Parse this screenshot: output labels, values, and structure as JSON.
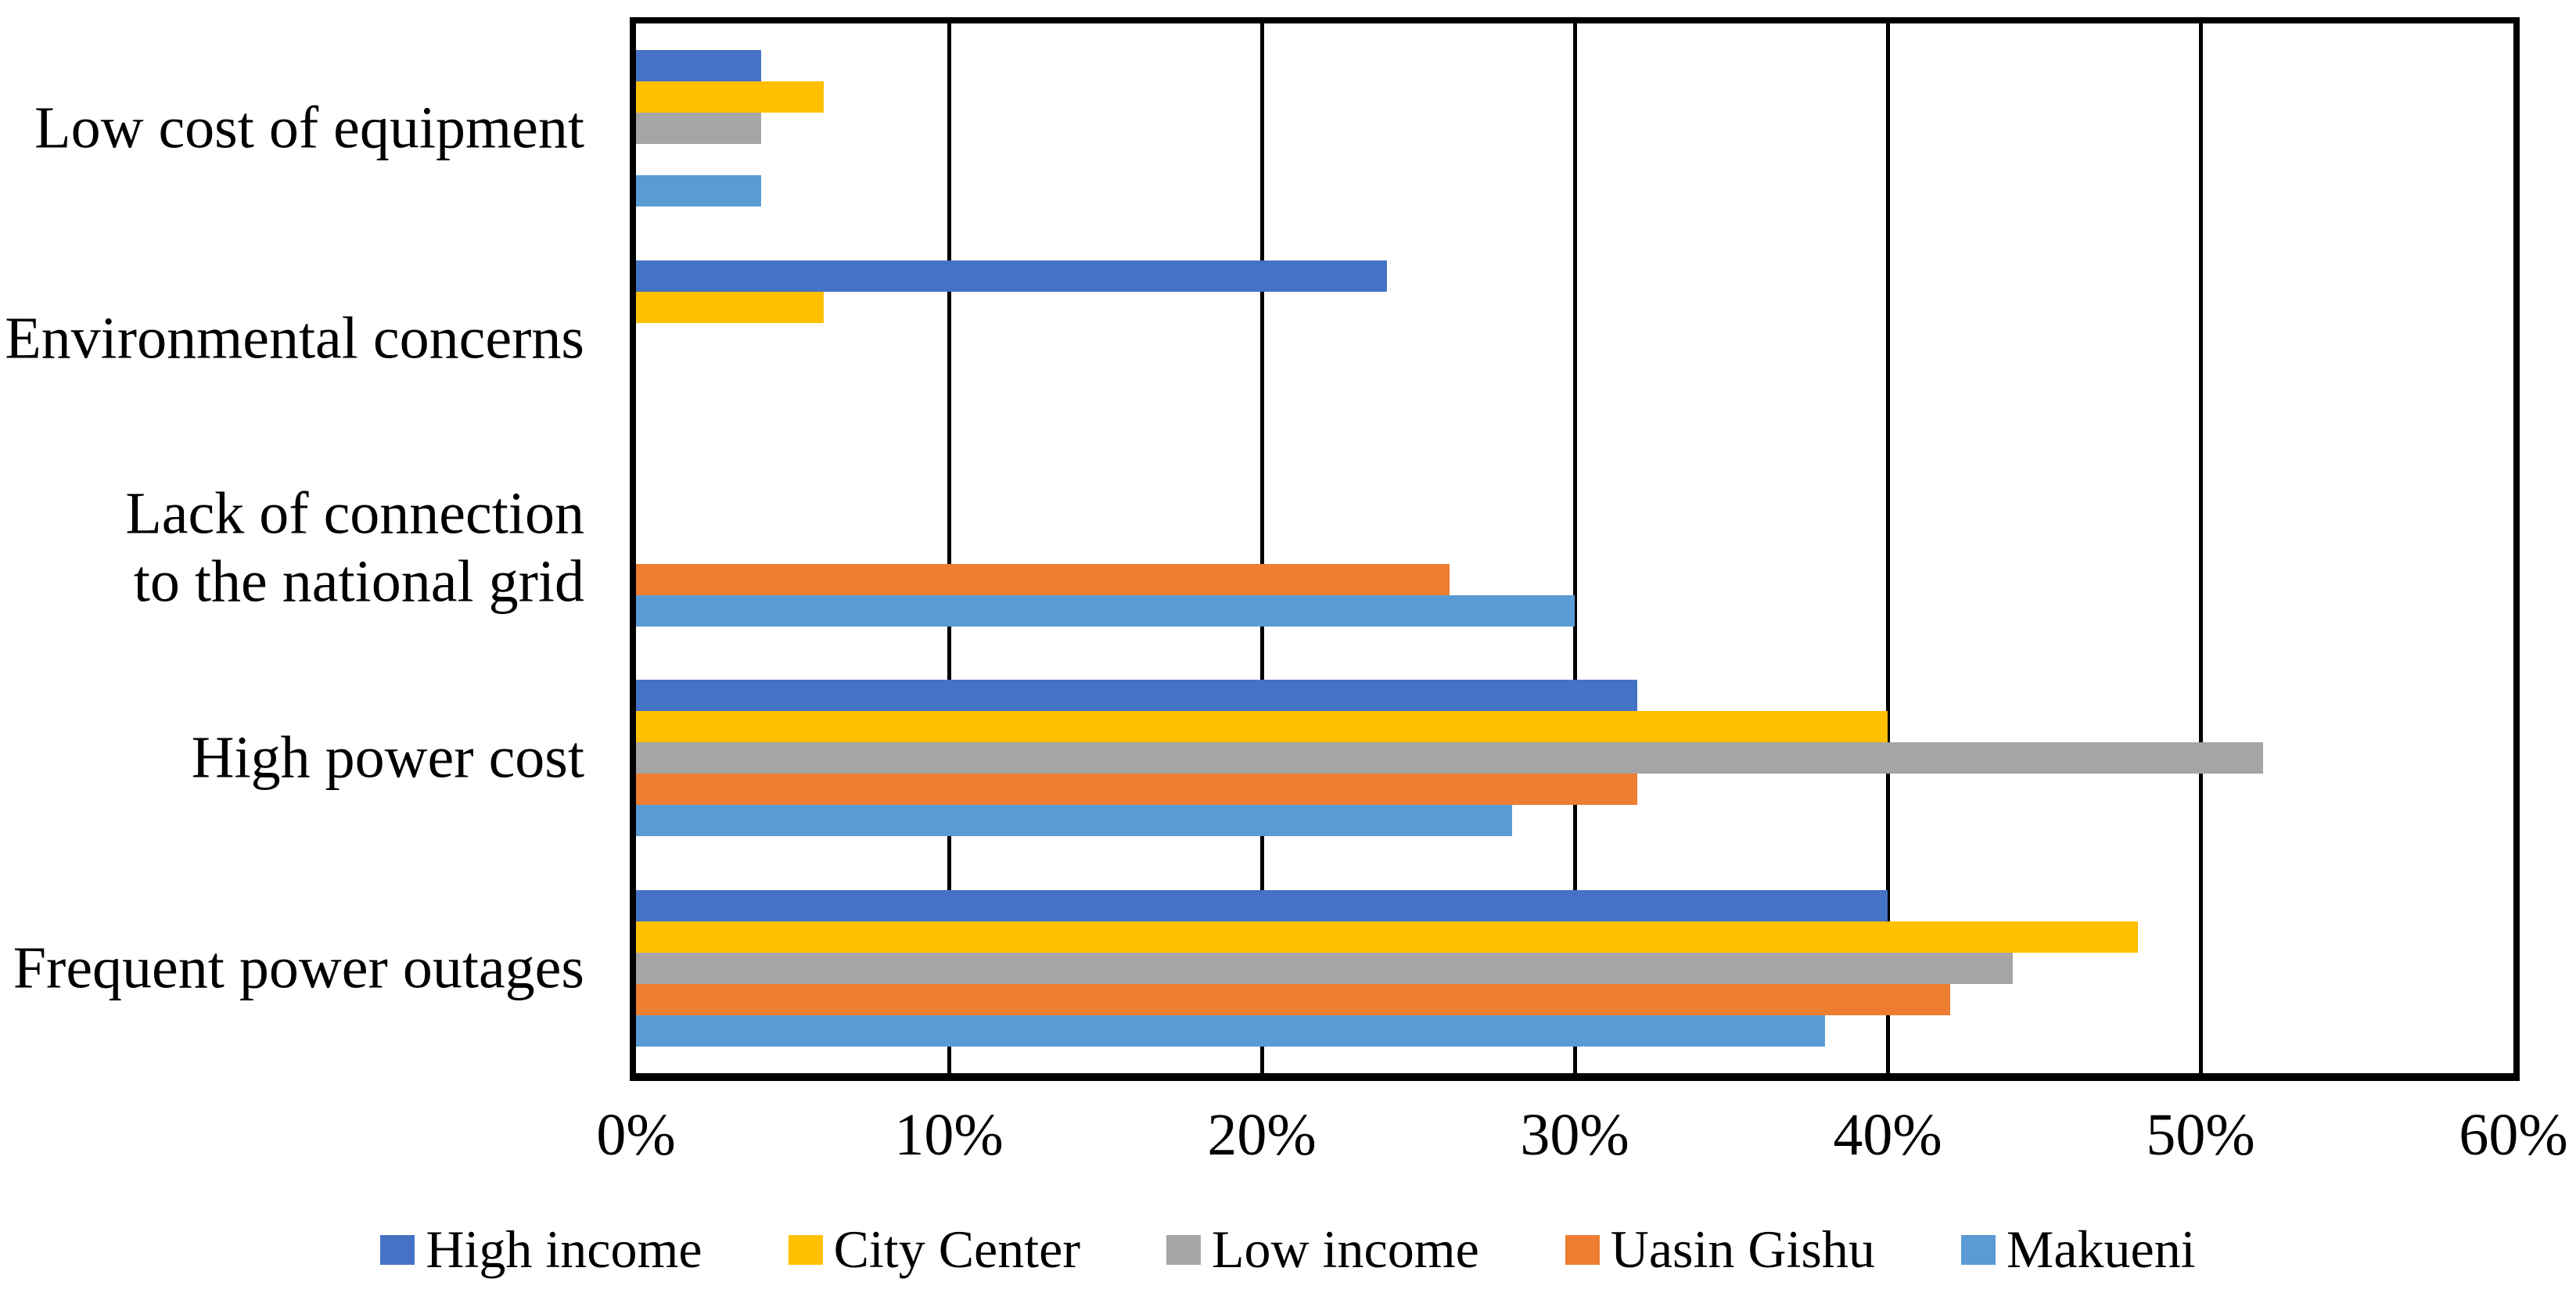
{
  "chart_data": {
    "type": "bar",
    "orientation": "horizontal",
    "title": "",
    "xlabel": "",
    "ylabel": "",
    "categories": [
      "Low cost of equipment",
      "Environmental concerns",
      "Lack of connection\nto the national grid",
      "High power cost",
      "Frequent power outages"
    ],
    "series": [
      {
        "name": "High income",
        "color": "#4472C4",
        "values": [
          4,
          24,
          0,
          32,
          40
        ]
      },
      {
        "name": "City Center",
        "color": "#FFC000",
        "values": [
          6,
          6,
          0,
          40,
          48
        ]
      },
      {
        "name": "Low income",
        "color": "#A5A5A5",
        "values": [
          4,
          0,
          0,
          52,
          44
        ]
      },
      {
        "name": "Uasin Gishu",
        "color": "#ED7D31",
        "values": [
          0,
          0,
          26,
          32,
          42
        ]
      },
      {
        "name": "Makueni",
        "color": "#5B9BD5",
        "values": [
          4,
          0,
          30,
          28,
          38
        ]
      }
    ],
    "x_ticks": [
      "0%",
      "10%",
      "20%",
      "30%",
      "40%",
      "50%",
      "60%"
    ],
    "xlim": [
      0,
      60
    ],
    "grid": "vertical-major",
    "legend_position": "bottom",
    "axis_color": "#000000",
    "plot_border_color": "#000000",
    "background": "#FFFFFF"
  }
}
